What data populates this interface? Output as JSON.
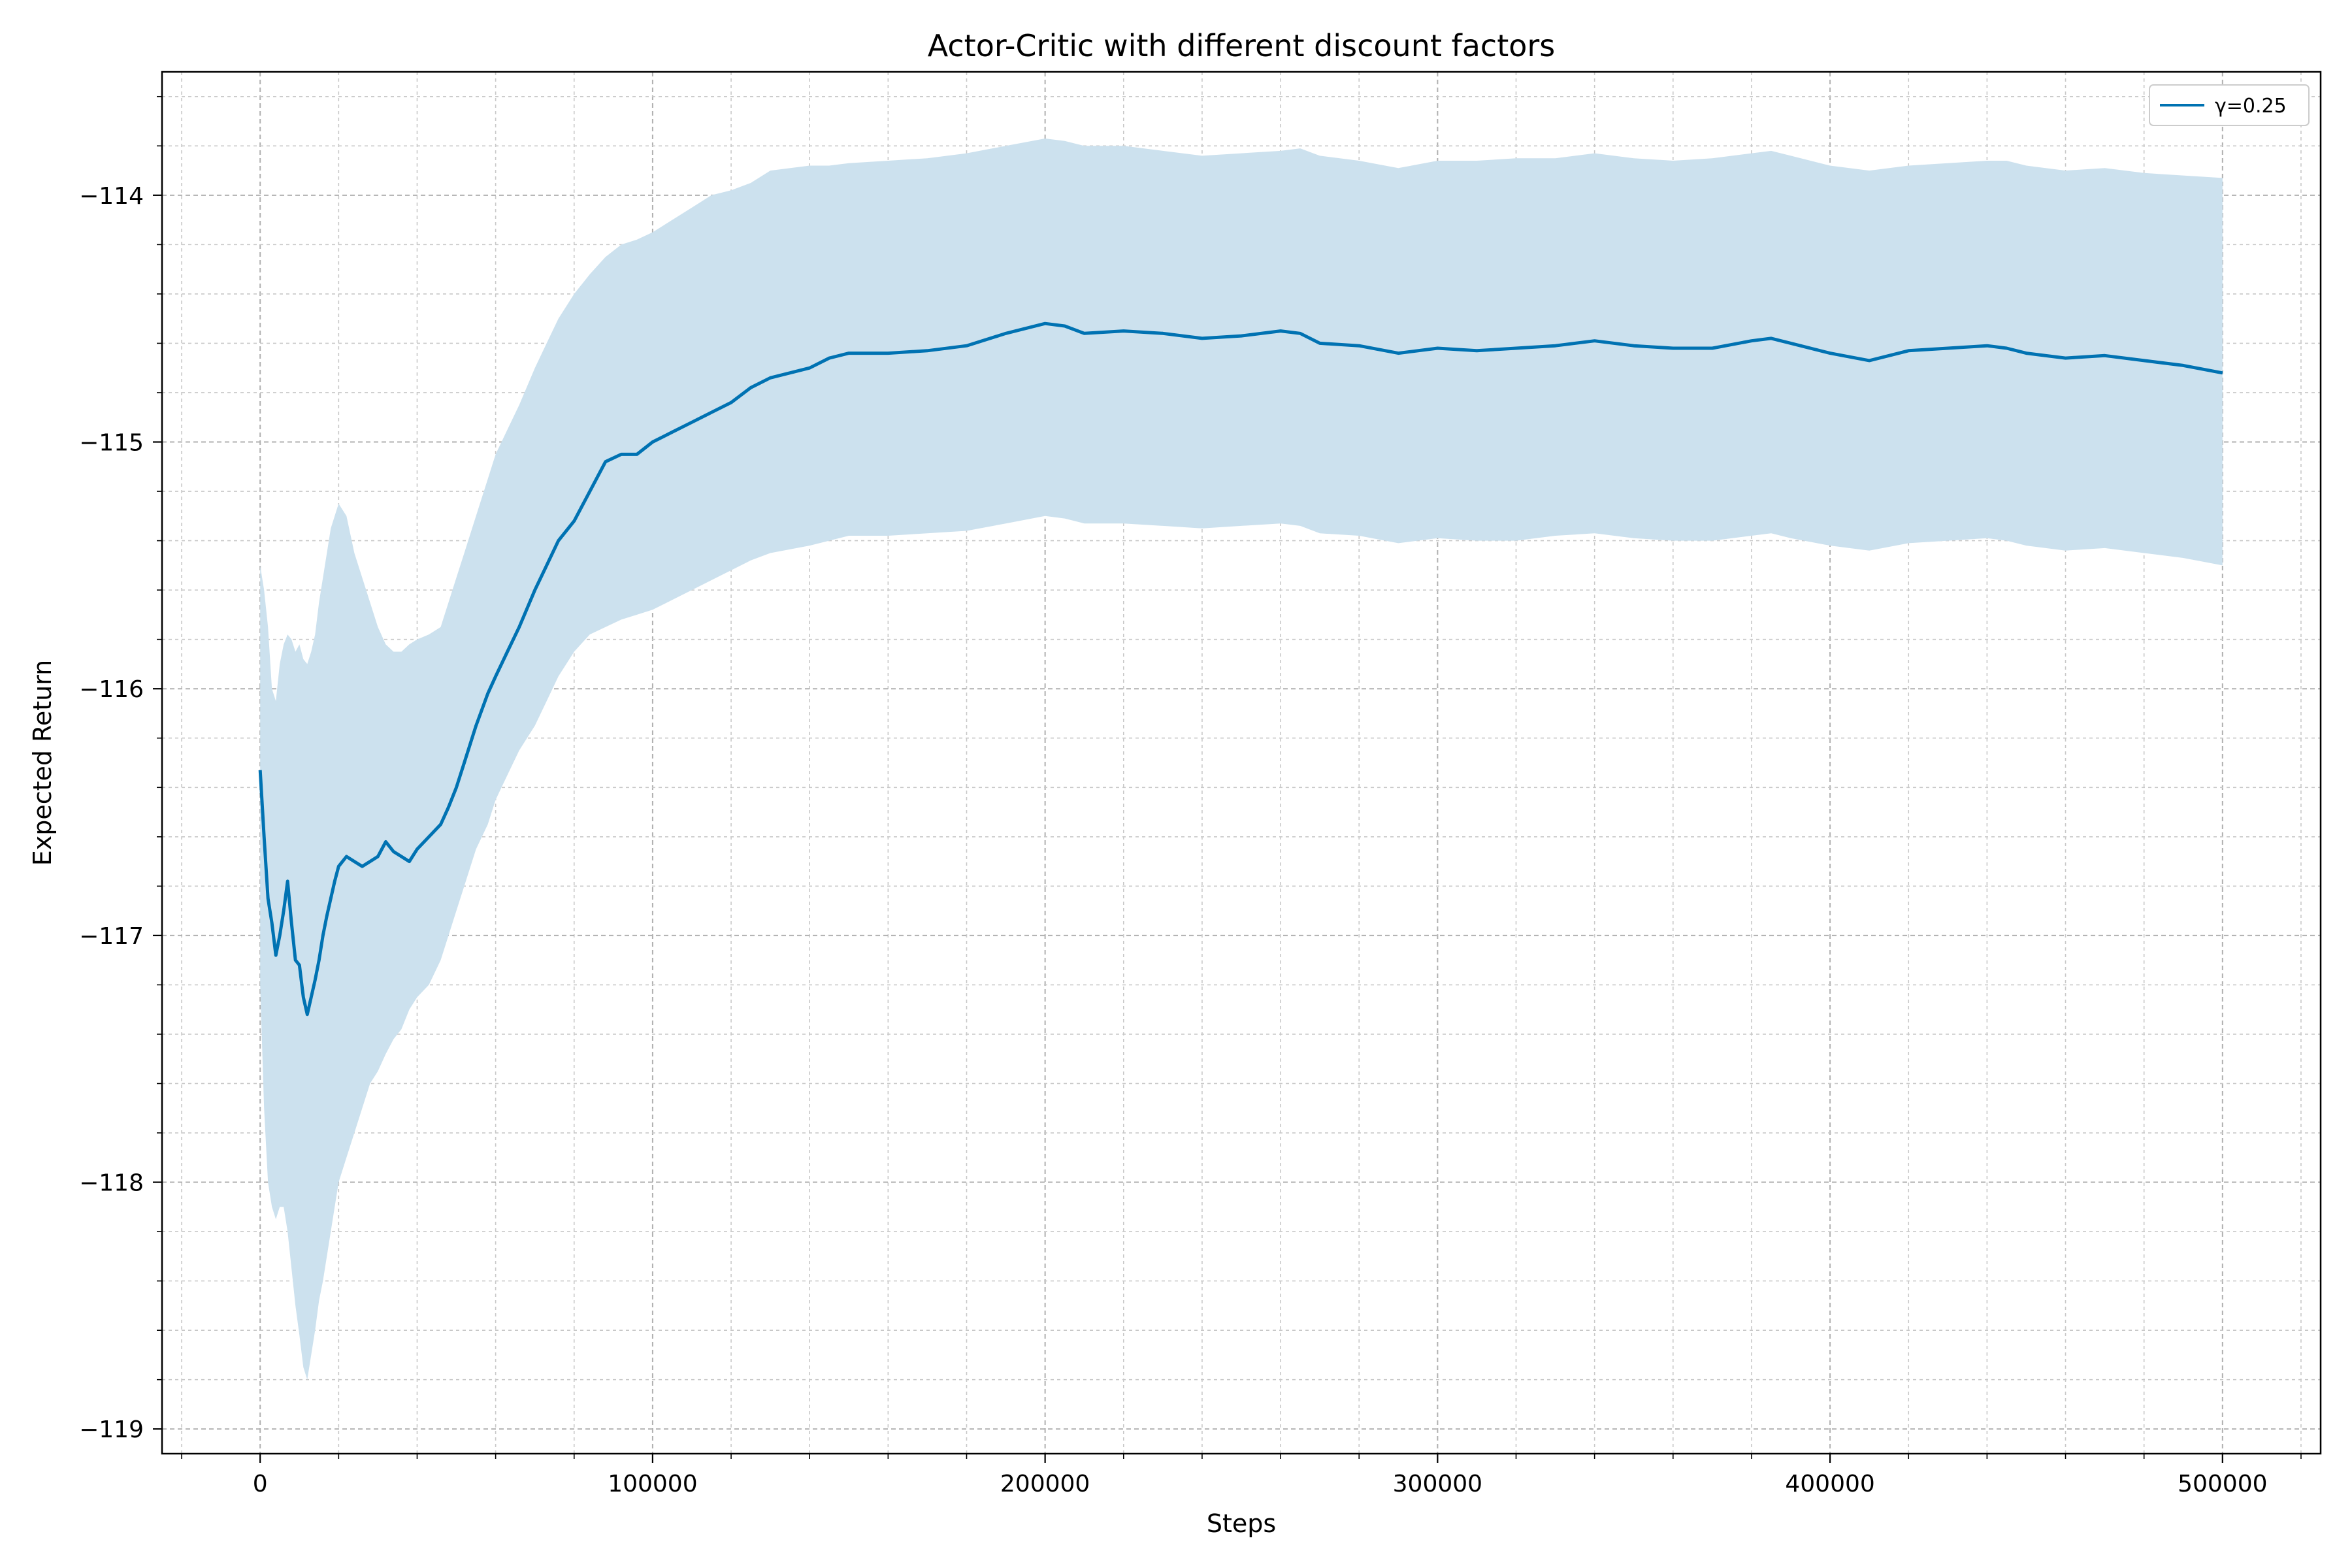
{
  "chart_data": {
    "type": "line",
    "title": "Actor-Critic with different discount factors",
    "xlabel": "Steps",
    "ylabel": "Expected Return",
    "xlim": [
      -25000,
      525000
    ],
    "ylim": [
      -119.1,
      -113.5
    ],
    "xticks": [
      0,
      100000,
      200000,
      300000,
      400000,
      500000
    ],
    "yticks": [
      -119,
      -118,
      -117,
      -116,
      -115,
      -114
    ],
    "xtick_labels": [
      "0",
      "100000",
      "200000",
      "300000",
      "400000",
      "500000"
    ],
    "ytick_labels": [
      "−119",
      "−118",
      "−117",
      "−116",
      "−115",
      "−114"
    ],
    "grid": true,
    "minor_grid": true,
    "legend_position": "top-right",
    "series": [
      {
        "name": "γ=0.25",
        "color": "#0072b2",
        "band_color": "#cce1ee",
        "x": [
          0,
          1000,
          2000,
          3000,
          4000,
          5000,
          6000,
          7000,
          8000,
          9000,
          10000,
          11000,
          12000,
          13000,
          14000,
          15000,
          16000,
          17000,
          18000,
          19000,
          20000,
          22000,
          24000,
          26000,
          28000,
          30000,
          32000,
          34000,
          36000,
          38000,
          40000,
          43000,
          46000,
          48000,
          50000,
          52000,
          55000,
          58000,
          60000,
          63000,
          66000,
          70000,
          73000,
          76000,
          80000,
          84000,
          88000,
          92000,
          96000,
          100000,
          105000,
          110000,
          115000,
          120000,
          125000,
          130000,
          140000,
          145000,
          150000,
          160000,
          170000,
          180000,
          190000,
          200000,
          205000,
          210000,
          220000,
          230000,
          240000,
          250000,
          260000,
          265000,
          270000,
          280000,
          290000,
          300000,
          310000,
          320000,
          330000,
          340000,
          350000,
          360000,
          370000,
          380000,
          385000,
          390000,
          400000,
          410000,
          420000,
          430000,
          440000,
          445000,
          450000,
          460000,
          470000,
          480000,
          490000,
          500000
        ],
        "mean": [
          -116.33,
          -116.6,
          -116.85,
          -116.95,
          -117.08,
          -117.0,
          -116.9,
          -116.78,
          -116.95,
          -117.1,
          -117.12,
          -117.25,
          -117.32,
          -117.25,
          -117.18,
          -117.1,
          -117.0,
          -116.92,
          -116.85,
          -116.78,
          -116.72,
          -116.68,
          -116.7,
          -116.72,
          -116.7,
          -116.68,
          -116.62,
          -116.66,
          -116.68,
          -116.7,
          -116.65,
          -116.6,
          -116.55,
          -116.48,
          -116.4,
          -116.3,
          -116.15,
          -116.02,
          -115.95,
          -115.85,
          -115.75,
          -115.6,
          -115.5,
          -115.4,
          -115.32,
          -115.2,
          -115.08,
          -115.05,
          -115.05,
          -115.0,
          -114.96,
          -114.92,
          -114.88,
          -114.84,
          -114.78,
          -114.74,
          -114.7,
          -114.66,
          -114.64,
          -114.64,
          -114.63,
          -114.61,
          -114.56,
          -114.52,
          -114.53,
          -114.56,
          -114.55,
          -114.56,
          -114.58,
          -114.57,
          -114.55,
          -114.56,
          -114.6,
          -114.61,
          -114.64,
          -114.62,
          -114.63,
          -114.62,
          -114.61,
          -114.59,
          -114.61,
          -114.62,
          -114.62,
          -114.59,
          -114.58,
          -114.6,
          -114.64,
          -114.67,
          -114.63,
          -114.62,
          -114.61,
          -114.62,
          -114.64,
          -114.66,
          -114.65,
          -114.67,
          -114.69,
          -114.72
        ],
        "upper": [
          -115.5,
          -115.6,
          -115.75,
          -116.0,
          -116.05,
          -115.9,
          -115.82,
          -115.78,
          -115.8,
          -115.85,
          -115.82,
          -115.88,
          -115.9,
          -115.85,
          -115.78,
          -115.65,
          -115.55,
          -115.45,
          -115.35,
          -115.3,
          -115.25,
          -115.3,
          -115.45,
          -115.55,
          -115.65,
          -115.75,
          -115.82,
          -115.85,
          -115.85,
          -115.82,
          -115.8,
          -115.78,
          -115.75,
          -115.65,
          -115.55,
          -115.45,
          -115.3,
          -115.15,
          -115.05,
          -114.95,
          -114.85,
          -114.7,
          -114.6,
          -114.5,
          -114.4,
          -114.32,
          -114.25,
          -114.2,
          -114.18,
          -114.15,
          -114.1,
          -114.05,
          -114.0,
          -113.98,
          -113.95,
          -113.9,
          -113.88,
          -113.88,
          -113.87,
          -113.86,
          -113.85,
          -113.83,
          -113.8,
          -113.77,
          -113.78,
          -113.8,
          -113.8,
          -113.82,
          -113.84,
          -113.83,
          -113.82,
          -113.81,
          -113.84,
          -113.86,
          -113.89,
          -113.86,
          -113.86,
          -113.85,
          -113.85,
          -113.83,
          -113.85,
          -113.86,
          -113.85,
          -113.83,
          -113.82,
          -113.84,
          -113.88,
          -113.9,
          -113.88,
          -113.87,
          -113.86,
          -113.86,
          -113.88,
          -113.9,
          -113.89,
          -113.91,
          -113.92,
          -113.93
        ],
        "lower": [
          -117.2,
          -117.7,
          -118.0,
          -118.1,
          -118.15,
          -118.1,
          -118.1,
          -118.2,
          -118.35,
          -118.5,
          -118.62,
          -118.75,
          -118.8,
          -118.7,
          -118.6,
          -118.48,
          -118.4,
          -118.3,
          -118.2,
          -118.1,
          -118.0,
          -117.9,
          -117.8,
          -117.7,
          -117.6,
          -117.55,
          -117.48,
          -117.42,
          -117.38,
          -117.3,
          -117.25,
          -117.2,
          -117.1,
          -117.0,
          -116.9,
          -116.8,
          -116.65,
          -116.55,
          -116.45,
          -116.35,
          -116.25,
          -116.15,
          -116.05,
          -115.95,
          -115.85,
          -115.78,
          -115.75,
          -115.72,
          -115.7,
          -115.68,
          -115.64,
          -115.6,
          -115.56,
          -115.52,
          -115.48,
          -115.45,
          -115.42,
          -115.4,
          -115.38,
          -115.38,
          -115.37,
          -115.36,
          -115.33,
          -115.3,
          -115.31,
          -115.33,
          -115.33,
          -115.34,
          -115.35,
          -115.34,
          -115.33,
          -115.34,
          -115.37,
          -115.38,
          -115.41,
          -115.39,
          -115.4,
          -115.4,
          -115.38,
          -115.37,
          -115.39,
          -115.4,
          -115.4,
          -115.38,
          -115.37,
          -115.39,
          -115.42,
          -115.44,
          -115.41,
          -115.4,
          -115.39,
          -115.4,
          -115.42,
          -115.44,
          -115.43,
          -115.45,
          -115.47,
          -115.5
        ]
      }
    ]
  }
}
